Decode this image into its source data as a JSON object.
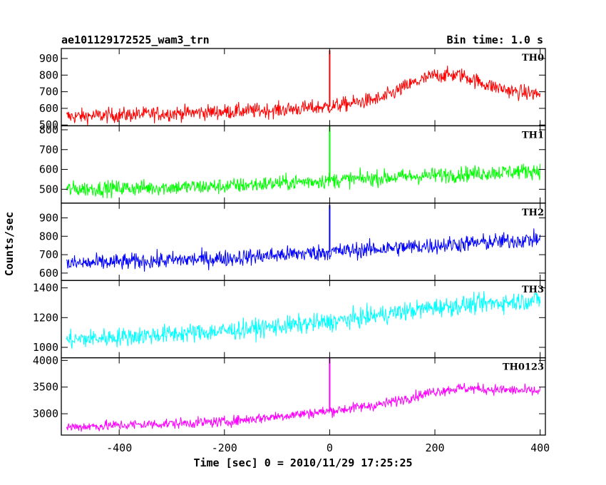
{
  "chart_data": {
    "type": "line",
    "title": "ae101129172525_wam3_trn",
    "bin_time": "Bin time: 1.0 s",
    "xlabel": "Time [sec] 0 = 2010/11/29 17:25:25",
    "ylabel": "Counts/sec",
    "xlim": [
      -510,
      410
    ],
    "xticks": [
      -400,
      -200,
      0,
      200,
      400
    ],
    "panels": [
      {
        "name": "TH0",
        "color": "#ff0000",
        "ylim": [
          495,
          960
        ],
        "yticks": [
          500,
          600,
          700,
          800,
          900
        ],
        "trend": [
          [
            -500,
            550
          ],
          [
            -300,
            570
          ],
          [
            -100,
            590
          ],
          [
            0,
            610
          ],
          [
            100,
            660
          ],
          [
            150,
            740
          ],
          [
            200,
            800
          ],
          [
            250,
            800
          ],
          [
            300,
            740
          ],
          [
            350,
            700
          ],
          [
            400,
            685
          ]
        ],
        "noise": 32,
        "spike": {
          "x": 0,
          "y": 950
        }
      },
      {
        "name": "TH1",
        "color": "#00ff00",
        "ylim": [
          430,
          820
        ],
        "yticks": [
          500,
          600,
          700,
          800
        ],
        "trend": [
          [
            -500,
            500
          ],
          [
            -200,
            515
          ],
          [
            0,
            545
          ],
          [
            200,
            570
          ],
          [
            400,
            595
          ]
        ],
        "noise": 28,
        "spike": {
          "x": 0,
          "y": 820
        }
      },
      {
        "name": "TH2",
        "color": "#0000ff",
        "ylim": [
          560,
          980
        ],
        "yticks": [
          600,
          700,
          800,
          900
        ],
        "trend": [
          [
            -500,
            650
          ],
          [
            -200,
            680
          ],
          [
            0,
            715
          ],
          [
            200,
            750
          ],
          [
            400,
            785
          ]
        ],
        "noise": 32,
        "spike": {
          "x": 0,
          "y": 970
        }
      },
      {
        "name": "TH3",
        "color": "#00ffff",
        "ylim": [
          930,
          1450
        ],
        "yticks": [
          1000,
          1200,
          1400
        ],
        "trend": [
          [
            -500,
            1050
          ],
          [
            -200,
            1110
          ],
          [
            0,
            1170
          ],
          [
            200,
            1270
          ],
          [
            400,
            1320
          ]
        ],
        "noise": 45
      },
      {
        "name": "TH0123",
        "color": "#ff00ff",
        "ylim": [
          2600,
          4050
        ],
        "yticks": [
          3000,
          3500,
          4000
        ],
        "trend": [
          [
            -500,
            2750
          ],
          [
            -200,
            2850
          ],
          [
            0,
            3050
          ],
          [
            100,
            3180
          ],
          [
            200,
            3420
          ],
          [
            250,
            3480
          ],
          [
            400,
            3420
          ]
        ],
        "noise": 70,
        "spike": {
          "x": 0,
          "y": 4050
        }
      }
    ],
    "grid": false
  }
}
